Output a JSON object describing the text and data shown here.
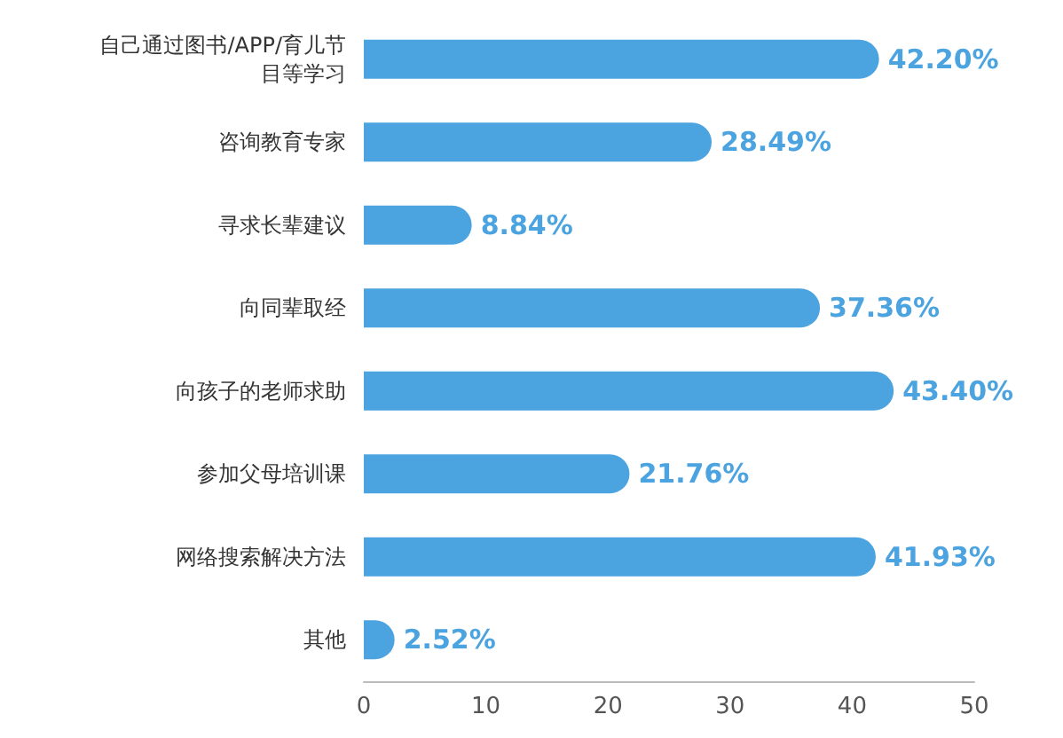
{
  "chart_data": {
    "type": "bar",
    "orientation": "horizontal",
    "categories": [
      "自己通过图书/APP/育儿节目等学习",
      "咨询教育专家",
      "寻求长辈建议",
      "向同辈取经",
      "向孩子的老师求助",
      "参加父母培训课",
      "网络搜索解决方法",
      "其他"
    ],
    "values": [
      42.2,
      28.49,
      8.84,
      37.36,
      43.4,
      21.76,
      41.93,
      2.52
    ],
    "value_labels": [
      "42.20%",
      "28.49%",
      "8.84%",
      "37.36%",
      "43.40%",
      "21.76%",
      "41.93%",
      "2.52%"
    ],
    "color": "#4ba3e0",
    "xlim": [
      0,
      50
    ],
    "xticks": [
      0,
      10,
      20,
      30,
      40,
      50
    ]
  }
}
